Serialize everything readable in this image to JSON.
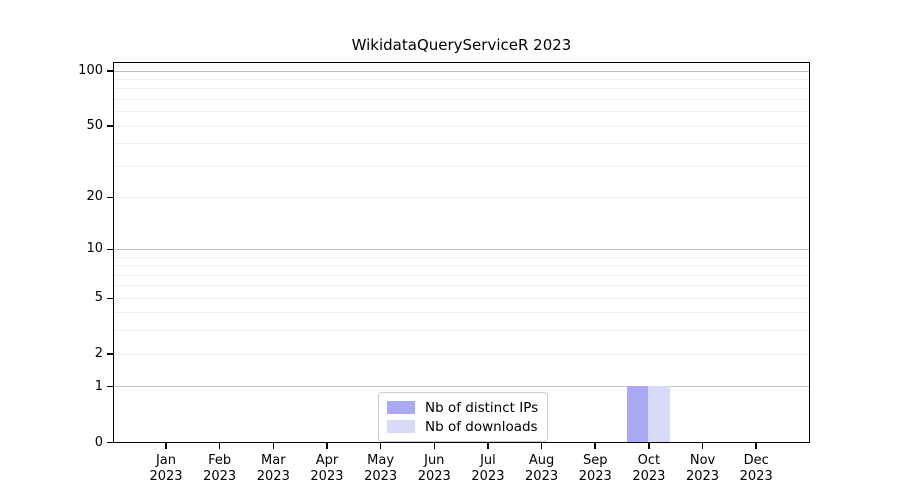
{
  "title": "WikidataQueryServiceR 2023",
  "chart_data": {
    "type": "bar",
    "title": "WikidataQueryServiceR 2023",
    "categories": [
      {
        "month": "Jan",
        "year": "2023"
      },
      {
        "month": "Feb",
        "year": "2023"
      },
      {
        "month": "Mar",
        "year": "2023"
      },
      {
        "month": "Apr",
        "year": "2023"
      },
      {
        "month": "May",
        "year": "2023"
      },
      {
        "month": "Jun",
        "year": "2023"
      },
      {
        "month": "Jul",
        "year": "2023"
      },
      {
        "month": "Aug",
        "year": "2023"
      },
      {
        "month": "Sep",
        "year": "2023"
      },
      {
        "month": "Oct",
        "year": "2023"
      },
      {
        "month": "Nov",
        "year": "2023"
      },
      {
        "month": "Dec",
        "year": "2023"
      }
    ],
    "series": [
      {
        "name": "Nb of distinct IPs",
        "color": "#a9a9f4",
        "values": [
          0,
          0,
          0,
          0,
          0,
          0,
          0,
          0,
          0,
          1,
          0,
          0
        ]
      },
      {
        "name": "Nb of downloads",
        "color": "#d9d9f8",
        "values": [
          0,
          0,
          0,
          0,
          0,
          0,
          0,
          0,
          0,
          1,
          0,
          0
        ]
      }
    ],
    "yticks": [
      0,
      1,
      2,
      5,
      10,
      20,
      50,
      100
    ],
    "yscale": "log1p",
    "ylim": [
      0,
      113
    ],
    "xlabel": "",
    "ylabel": "",
    "grid": true,
    "major_grid_values": [
      1,
      10,
      100
    ],
    "legend_position": "lower center",
    "colors": {
      "major_grid": "#c3c3c3",
      "minor_grid": "#ededed",
      "spine": "#000000"
    }
  }
}
